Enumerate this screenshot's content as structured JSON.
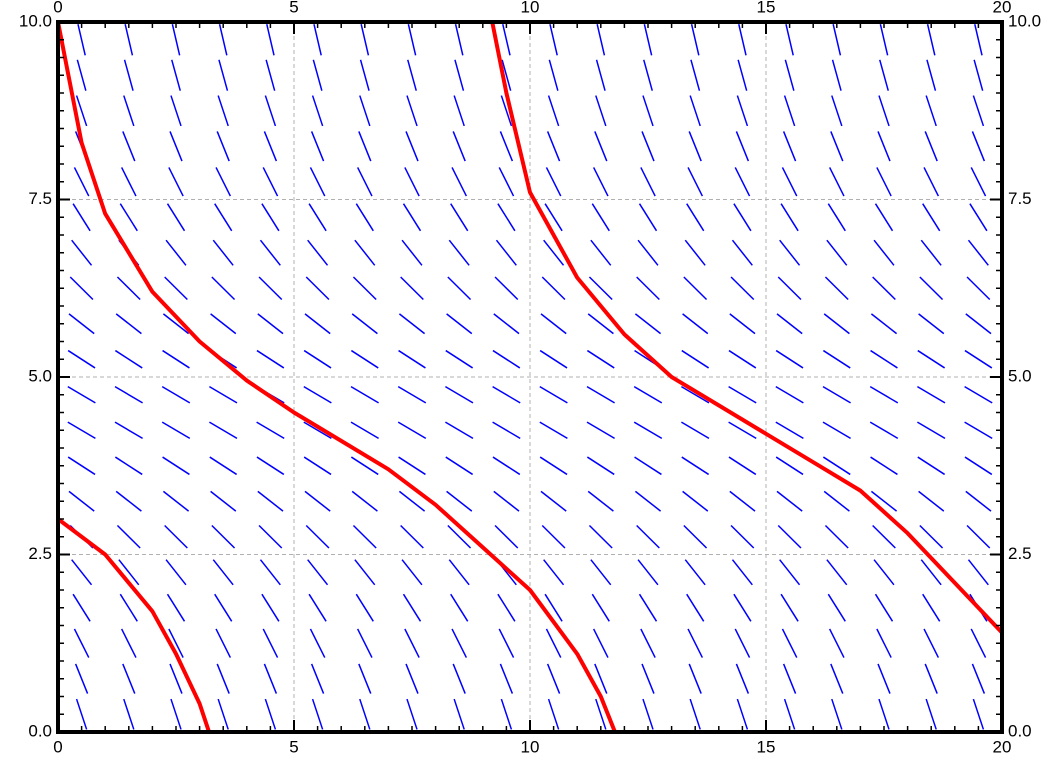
{
  "chart_data": {
    "type": "slope-field",
    "xlim": [
      0,
      20
    ],
    "ylim": [
      0,
      10
    ],
    "xticks": [
      0,
      5,
      10,
      15,
      20
    ],
    "yticks": [
      {
        "value": 0,
        "label": "0.0"
      },
      {
        "value": 2.5,
        "label": "2.5"
      },
      {
        "value": 5,
        "label": "5.0"
      },
      {
        "value": 7.5,
        "label": "7.5"
      },
      {
        "value": 10,
        "label": "10.0"
      }
    ],
    "grid": true,
    "field": {
      "color": "#0000ff",
      "x": [
        0.5,
        1.5,
        2.5,
        3.5,
        4.5,
        5.5,
        6.5,
        7.5,
        8.5,
        9.5,
        10.5,
        11.5,
        12.5,
        13.5,
        14.5,
        15.5,
        16.5,
        17.5,
        18.5,
        19.5
      ],
      "y": [
        0.25,
        0.75,
        1.25,
        1.75,
        2.25,
        2.75,
        3.25,
        3.75,
        4.25,
        4.75,
        5.25,
        5.75,
        6.25,
        6.75,
        7.25,
        7.75,
        8.25,
        8.75,
        9.25,
        9.75
      ],
      "slopes": [
        -2.01,
        -1.65,
        -1.33,
        -1.06,
        -0.84,
        -0.66,
        -0.52,
        -0.43,
        -0.39,
        -0.39,
        -0.43,
        -0.52,
        -0.66,
        -0.84,
        -1.06,
        -1.33,
        -1.65,
        -2.01,
        -2.41,
        -2.86
      ]
    },
    "series": [
      {
        "color": "#ff0000",
        "x": [
          0,
          0.5,
          1,
          2,
          3,
          4,
          5,
          6,
          7,
          8,
          9,
          10,
          11,
          11.5,
          11.8
        ],
        "values": [
          10,
          8.3,
          7.3,
          6.2,
          5.5,
          4.95,
          4.5,
          4.1,
          3.7,
          3.2,
          2.6,
          2.0,
          1.1,
          0.5,
          0
        ]
      },
      {
        "color": "#ff0000",
        "x": [
          0,
          1,
          2,
          2.5,
          3,
          3.2
        ],
        "values": [
          3.0,
          2.5,
          1.7,
          1.1,
          0.4,
          0
        ]
      },
      {
        "color": "#ff0000",
        "x": [
          9.2,
          9.5,
          10,
          11,
          12,
          13,
          14,
          15,
          16,
          17,
          18,
          19,
          20
        ],
        "values": [
          10,
          9.0,
          7.6,
          6.4,
          5.6,
          5.0,
          4.6,
          4.2,
          3.8,
          3.4,
          2.8,
          2.1,
          1.4
        ]
      }
    ]
  }
}
